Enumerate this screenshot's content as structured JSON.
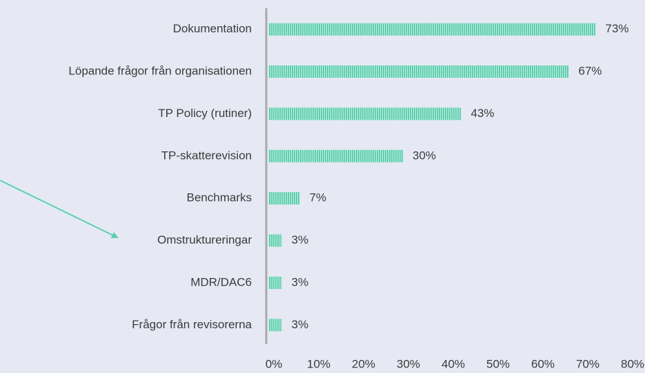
{
  "chart_data": {
    "type": "bar",
    "orientation": "horizontal",
    "categories": [
      "Dokumentation",
      "Löpande frågor från organisationen",
      "TP Policy (rutiner)",
      "TP-skatterevision",
      "Benchmarks",
      "Omstruktureringar",
      "MDR/DAC6",
      "Frågor från revisorerna"
    ],
    "values": [
      73,
      67,
      43,
      30,
      7,
      3,
      3,
      3
    ],
    "value_labels": [
      "73%",
      "67%",
      "43%",
      "30%",
      "7%",
      "3%",
      "3%",
      "3%"
    ],
    "color": "#5ccfae",
    "xlim": [
      0,
      80
    ],
    "xticks": [
      {
        "value": 0,
        "label": "0%"
      },
      {
        "value": 10,
        "label": "10%"
      },
      {
        "value": 20,
        "label": "20%"
      },
      {
        "value": 30,
        "label": "30%"
      },
      {
        "value": 40,
        "label": "40%"
      },
      {
        "value": 50,
        "label": "50%"
      },
      {
        "value": 60,
        "label": "60%"
      },
      {
        "value": 70,
        "label": "70%"
      },
      {
        "value": 80,
        "label": "80%"
      }
    ],
    "grid": false
  }
}
